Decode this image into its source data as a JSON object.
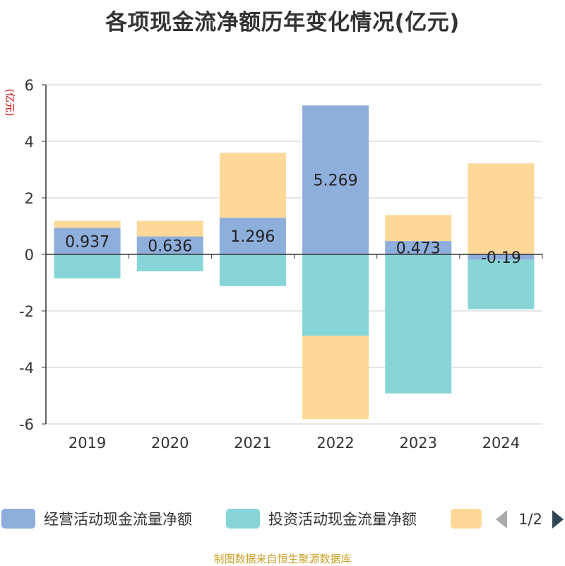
{
  "title": "各项现金流净额历年变化情况(亿元)",
  "source": "制图数据来自恒生聚源数据库",
  "chart_data": {
    "type": "bar",
    "stacked": true,
    "title": "各项现金流净额历年变化情况(亿元)",
    "ylabel": "(亿元)",
    "ylim": [
      -6,
      6
    ],
    "yticks": [
      -6,
      -4,
      -2,
      0,
      2,
      4,
      6
    ],
    "grid": true,
    "categories": [
      "2019",
      "2020",
      "2021",
      "2022",
      "2023",
      "2024"
    ],
    "series": [
      {
        "name": "经营活动现金流量净额",
        "color": "#8eaedc",
        "values": [
          0.937,
          0.636,
          1.296,
          5.269,
          0.473,
          -0.19
        ],
        "labels": [
          "0.937",
          "0.636",
          "1.296",
          "5.269",
          "0.473",
          "-0.19"
        ]
      },
      {
        "name": "投资活动现金流量净额",
        "color": "#88d5d8",
        "values": [
          -0.85,
          -0.6,
          -1.12,
          -2.88,
          -4.92,
          -1.75
        ]
      },
      {
        "name": "",
        "color": "#fdd899",
        "values": [
          0.25,
          0.55,
          2.3,
          -2.95,
          0.92,
          3.22
        ]
      }
    ],
    "legend": {
      "position": "bottom",
      "page": "1/2"
    }
  }
}
